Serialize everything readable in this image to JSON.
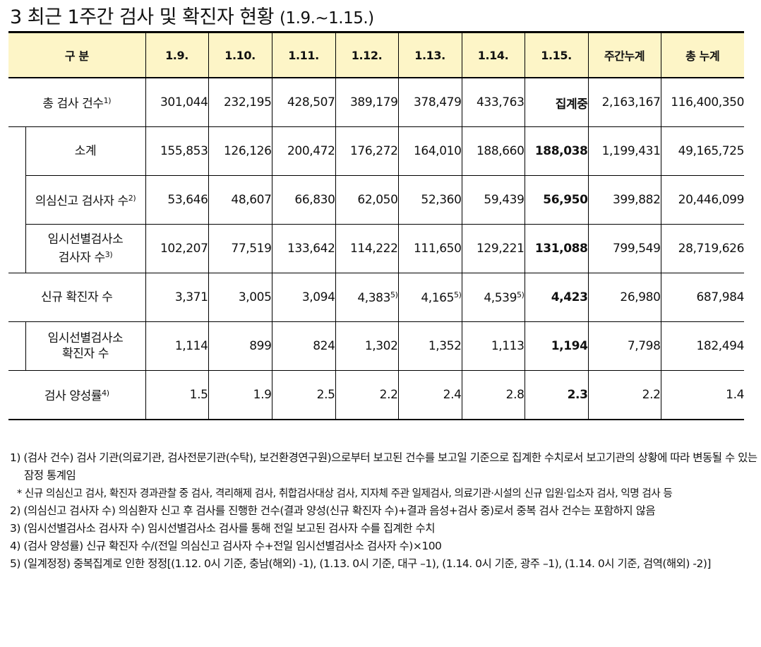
{
  "title": {
    "main": "3  최근 1주간 검사 및 확진자 현황",
    "period": "(1.9.~1.15.)"
  },
  "table": {
    "header": {
      "category": "구 분",
      "dates": [
        "1.9.",
        "1.10.",
        "1.11.",
        "1.12.",
        "1.13.",
        "1.14.",
        "1.15."
      ],
      "weekly_total": "주간누계",
      "grand_total": "총 누계"
    },
    "rows": {
      "total_tests": {
        "label": "총 검사 건수",
        "note": "1)",
        "values": [
          "301,044",
          "232,195",
          "428,507",
          "389,179",
          "378,479",
          "433,763",
          "집계중",
          "2,163,167",
          "116,400,350"
        ]
      },
      "subtotal": {
        "label": "소계",
        "values": [
          "155,853",
          "126,126",
          "200,472",
          "176,272",
          "164,010",
          "188,660",
          "188,038",
          "1,199,431",
          "49,165,725"
        ]
      },
      "suspected": {
        "label": "의심신고 검사자 수",
        "note": "2)",
        "values": [
          "53,646",
          "48,607",
          "66,830",
          "62,050",
          "52,360",
          "59,439",
          "56,950",
          "399,882",
          "20,446,099"
        ]
      },
      "temp_station": {
        "label_line1": "임시선별검사소",
        "label_line2": "검사자 수",
        "note": "3)",
        "values": [
          "102,207",
          "77,519",
          "133,642",
          "114,222",
          "111,650",
          "129,221",
          "131,088",
          "799,549",
          "28,719,626"
        ]
      },
      "new_confirmed": {
        "label": "신규 확진자 수",
        "values": [
          "3,371",
          "3,005",
          "3,094",
          "4,383",
          "4,165",
          "4,539",
          "4,423",
          "26,980",
          "687,984"
        ],
        "value_notes": [
          "",
          "",
          "",
          "5)",
          "5)",
          "5)",
          "",
          "",
          ""
        ]
      },
      "temp_confirmed": {
        "label_line1": "임시선별검사소",
        "label_line2": "확진자 수",
        "values": [
          "1,114",
          "899",
          "824",
          "1,302",
          "1,352",
          "1,113",
          "1,194",
          "7,798",
          "182,494"
        ]
      },
      "positivity": {
        "label": "검사 양성률",
        "note": "4)",
        "values": [
          "1.5",
          "1.9",
          "2.5",
          "2.2",
          "2.4",
          "2.8",
          "2.3",
          "2.2",
          "1.4"
        ]
      }
    }
  },
  "notes": [
    "1) (검사 건수) 검사 기관(의료기관, 검사전문기관(수탁), 보건환경연구원)으로부터 보고된 건수를 보고일 기준으로 집계한 수치로서 보고기관의 상황에 따라 변동될 수 있는 잠정 통계임",
    "* 신규 의심신고 검사, 확진자 경과관찰 중 검사, 격리해제 검사, 취합검사대상 검사, 지자체 주관 일제검사, 의료기관·시설의 신규 입원·입소자 검사, 익명 검사 등",
    "2) (의심신고 검사자 수) 의심환자 신고 후 검사를 진행한 건수(결과 양성(신규 확진자 수)+결과 음성+검사 중)로서 중복 검사 건수는 포함하지 않음",
    "3) (임시선별검사소 검사자 수) 임시선별검사소 검사를 통해 전일 보고된 검사자 수를 집계한 수치",
    "4) (검사 양성률) 신규 확진자 수/(전일 의심신고 검사자 수+전일 임시선별검사소 검사자 수)×100",
    "5) (일계정정) 중복집계로 인한 정정[(1.12. 0시 기준, 충남(해외) -1), (1.13. 0시 기준, 대구 –1), (1.14. 0시 기준, 광주 –1), (1.14. 0시 기준, 검역(해외) -2)]"
  ]
}
